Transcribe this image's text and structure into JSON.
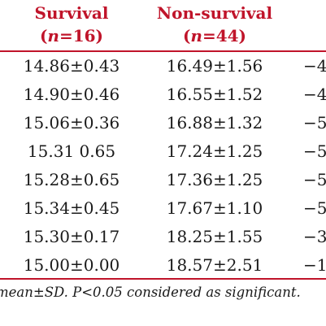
{
  "table": {
    "header": {
      "survival": {
        "name": "Survival",
        "n_open": "(",
        "n_var": "n",
        "n_rest": "=16)"
      },
      "non_survival": {
        "name": "Non-survival",
        "n_open": "(",
        "n_var": "n",
        "n_rest": "=44)"
      }
    },
    "rows": [
      {
        "survival": "14.86±0.43",
        "non_survival": "16.49±1.56",
        "p": "−4"
      },
      {
        "survival": "14.90±0.46",
        "non_survival": "16.55±1.52",
        "p": "−4"
      },
      {
        "survival": "15.06±0.36",
        "non_survival": "16.88±1.32",
        "p": "−5"
      },
      {
        "survival": "15.31 0.65",
        "non_survival": "17.24±1.25",
        "p": "−5"
      },
      {
        "survival": "15.28±0.65",
        "non_survival": "17.36±1.25",
        "p": "−5"
      },
      {
        "survival": "15.34±0.45",
        "non_survival": "17.67±1.10",
        "p": "−5"
      },
      {
        "survival": "15.30±0.17",
        "non_survival": "18.25±1.55",
        "p": "−3"
      },
      {
        "survival": "15.00±0.00",
        "non_survival": "18.57±2.51",
        "p": "−1"
      }
    ]
  },
  "footnote": "mean±SD. P<0.05 considered as significant.",
  "colors": {
    "header": "#c0142a",
    "rule": "#c0142a",
    "text": "#1a1a1a"
  }
}
